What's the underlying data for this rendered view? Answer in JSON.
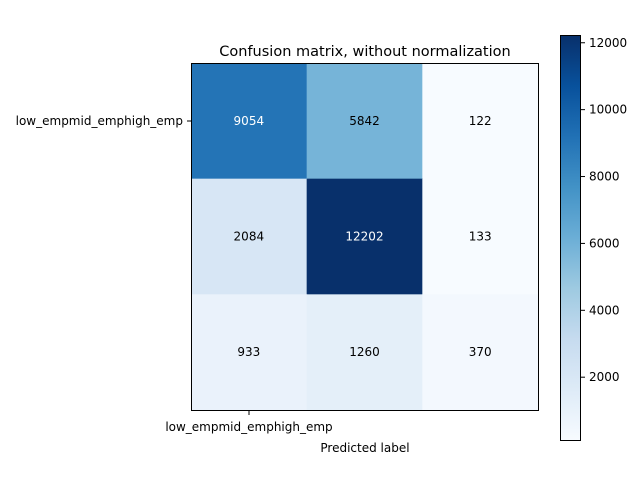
{
  "chart_data": {
    "type": "heatmap",
    "title": "Confusion matrix, without normalization",
    "xlabel": "Predicted label",
    "ylabel": "",
    "x_tick_labels": [
      "low_empmid_emphigh_emp"
    ],
    "y_tick_labels": [
      "low_empmid_emphigh_emp"
    ],
    "rows": 3,
    "cols": 3,
    "values": [
      [
        9054,
        5842,
        122
      ],
      [
        2084,
        12202,
        133
      ],
      [
        933,
        1260,
        370
      ]
    ],
    "colormap": "Blues",
    "color_range": [
      122,
      12202
    ],
    "colorbar_ticks": [
      2000,
      4000,
      6000,
      8000,
      10000,
      12000
    ],
    "grid": false
  },
  "colors": {
    "blues_low": "#f7fbff",
    "blues_high": "#08306b",
    "text_dark": "#000000",
    "text_light": "#ffffff"
  }
}
